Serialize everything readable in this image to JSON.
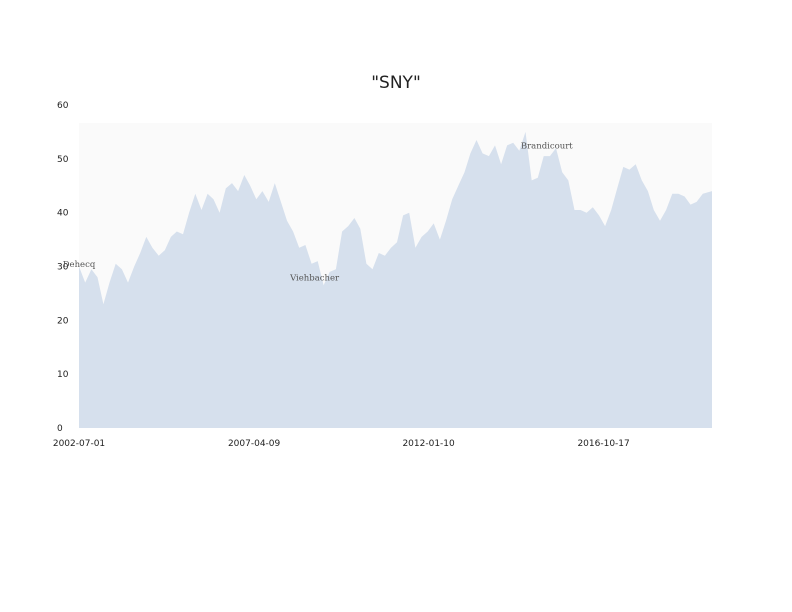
{
  "chart_data": {
    "type": "area",
    "title": "\"SNY\"",
    "xlabel": "",
    "ylabel": "",
    "x_ticks": [
      "2002-07-01",
      "2007-04-09",
      "2012-01-10",
      "2016-10-17"
    ],
    "y_ticks": [
      "0",
      "10",
      "20",
      "30",
      "40",
      "50",
      "60"
    ],
    "xlim": [
      "2002-07-01",
      "2019-10-01"
    ],
    "ylim": [
      0,
      60
    ],
    "grid": false,
    "colors": {
      "fill": "#d6e0ed",
      "plot_bg": "#fafafa"
    },
    "series": [
      {
        "points": [
          [
            "2002-07-01",
            30.0
          ],
          [
            "2002-09-01",
            27.0
          ],
          [
            "2002-11-01",
            29.5
          ],
          [
            "2003-01-01",
            28.0
          ],
          [
            "2003-03-01",
            23.0
          ],
          [
            "2003-05-01",
            27.0
          ],
          [
            "2003-07-01",
            30.5
          ],
          [
            "2003-09-01",
            29.5
          ],
          [
            "2003-11-01",
            27.0
          ],
          [
            "2004-01-01",
            30.0
          ],
          [
            "2004-03-01",
            32.5
          ],
          [
            "2004-05-01",
            35.5
          ],
          [
            "2004-07-01",
            33.5
          ],
          [
            "2004-09-01",
            32.0
          ],
          [
            "2004-11-01",
            33.0
          ],
          [
            "2005-01-01",
            35.5
          ],
          [
            "2005-03-01",
            36.5
          ],
          [
            "2005-05-01",
            36.0
          ],
          [
            "2005-07-01",
            40.0
          ],
          [
            "2005-09-01",
            43.5
          ],
          [
            "2005-11-01",
            40.5
          ],
          [
            "2006-01-01",
            43.5
          ],
          [
            "2006-03-01",
            42.5
          ],
          [
            "2006-05-01",
            40.0
          ],
          [
            "2006-07-01",
            44.5
          ],
          [
            "2006-09-01",
            45.5
          ],
          [
            "2006-11-01",
            44.0
          ],
          [
            "2007-01-01",
            47.0
          ],
          [
            "2007-03-01",
            45.0
          ],
          [
            "2007-05-01",
            42.5
          ],
          [
            "2007-07-01",
            44.0
          ],
          [
            "2007-09-01",
            42.0
          ],
          [
            "2007-11-01",
            45.5
          ],
          [
            "2008-01-01",
            42.0
          ],
          [
            "2008-03-01",
            38.5
          ],
          [
            "2008-05-01",
            36.5
          ],
          [
            "2008-07-01",
            33.5
          ],
          [
            "2008-09-01",
            34.0
          ],
          [
            "2008-11-01",
            30.5
          ],
          [
            "2009-01-01",
            31.0
          ],
          [
            "2009-03-01",
            26.5
          ],
          [
            "2009-05-01",
            29.0
          ],
          [
            "2009-07-01",
            29.5
          ],
          [
            "2009-09-01",
            36.5
          ],
          [
            "2009-11-01",
            37.5
          ],
          [
            "2010-01-01",
            39.0
          ],
          [
            "2010-03-01",
            37.0
          ],
          [
            "2010-05-01",
            30.5
          ],
          [
            "2010-07-01",
            29.5
          ],
          [
            "2010-09-01",
            32.5
          ],
          [
            "2010-11-01",
            32.0
          ],
          [
            "2011-01-01",
            33.5
          ],
          [
            "2011-03-01",
            34.5
          ],
          [
            "2011-05-01",
            39.5
          ],
          [
            "2011-07-01",
            40.0
          ],
          [
            "2011-09-01",
            33.5
          ],
          [
            "2011-11-01",
            35.5
          ],
          [
            "2012-01-01",
            36.5
          ],
          [
            "2012-03-01",
            38.0
          ],
          [
            "2012-05-01",
            35.0
          ],
          [
            "2012-07-01",
            38.5
          ],
          [
            "2012-09-01",
            42.5
          ],
          [
            "2012-11-01",
            45.0
          ],
          [
            "2013-01-01",
            47.5
          ],
          [
            "2013-03-01",
            51.0
          ],
          [
            "2013-05-01",
            53.5
          ],
          [
            "2013-07-01",
            51.0
          ],
          [
            "2013-09-01",
            50.5
          ],
          [
            "2013-11-01",
            52.5
          ],
          [
            "2014-01-01",
            49.0
          ],
          [
            "2014-03-01",
            52.5
          ],
          [
            "2014-05-01",
            53.0
          ],
          [
            "2014-07-01",
            51.5
          ],
          [
            "2014-09-01",
            55.0
          ],
          [
            "2014-11-01",
            46.0
          ],
          [
            "2015-01-01",
            46.5
          ],
          [
            "2015-03-01",
            50.5
          ],
          [
            "2015-05-01",
            50.5
          ],
          [
            "2015-07-01",
            52.0
          ],
          [
            "2015-09-01",
            47.5
          ],
          [
            "2015-11-01",
            46.0
          ],
          [
            "2016-01-01",
            40.5
          ],
          [
            "2016-03-01",
            40.5
          ],
          [
            "2016-05-01",
            40.0
          ],
          [
            "2016-07-01",
            41.0
          ],
          [
            "2016-09-01",
            39.5
          ],
          [
            "2016-11-01",
            37.5
          ],
          [
            "2017-01-01",
            40.5
          ],
          [
            "2017-03-01",
            44.5
          ],
          [
            "2017-05-01",
            48.5
          ],
          [
            "2017-07-01",
            48.0
          ],
          [
            "2017-09-01",
            49.0
          ],
          [
            "2017-11-01",
            46.0
          ],
          [
            "2018-01-01",
            44.0
          ],
          [
            "2018-03-01",
            40.5
          ],
          [
            "2018-05-01",
            38.5
          ],
          [
            "2018-07-01",
            40.5
          ],
          [
            "2018-09-01",
            43.5
          ],
          [
            "2018-11-01",
            43.5
          ],
          [
            "2019-01-01",
            43.0
          ],
          [
            "2019-03-01",
            41.5
          ],
          [
            "2019-05-01",
            42.0
          ],
          [
            "2019-07-01",
            43.5
          ],
          [
            "2019-10-01",
            44.0
          ]
        ]
      }
    ],
    "annotations": [
      {
        "text": "Dehecq",
        "x": "2002-07-01",
        "y": 30.5
      },
      {
        "text": "Viehbacher",
        "x": "2008-12-01",
        "y": 28.0
      },
      {
        "text": "Brandicourt",
        "x": "2015-04-01",
        "y": 52.5
      }
    ]
  }
}
